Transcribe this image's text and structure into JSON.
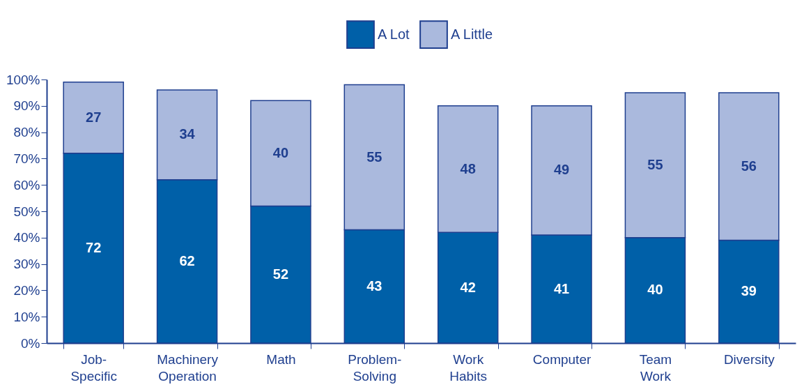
{
  "chart_data": {
    "type": "bar",
    "stacked": true,
    "data_labels": true,
    "legend": "top",
    "grid": false,
    "categories": [
      "Job-Specific",
      "Machinery Operation",
      "Math",
      "Problem-Solving",
      "Work Habits",
      "Computer",
      "Team Work",
      "Diversity"
    ],
    "series": [
      {
        "name": "A Lot",
        "color": "#0060a8",
        "values": [
          72,
          62,
          52,
          43,
          42,
          41,
          40,
          39
        ]
      },
      {
        "name": "A Little",
        "color": "#aab9dd",
        "values": [
          27,
          34,
          40,
          55,
          48,
          49,
          55,
          56
        ]
      }
    ],
    "ylim": [
      0,
      100
    ],
    "yticks": [
      {
        "value": 0,
        "label": "0%"
      },
      {
        "value": 10,
        "label": "10%"
      },
      {
        "value": 20,
        "label": "20%"
      },
      {
        "value": 30,
        "label": "30%"
      },
      {
        "value": 40,
        "label": "40%"
      },
      {
        "value": 50,
        "label": "50%"
      },
      {
        "value": 60,
        "label": "60%"
      },
      {
        "value": 70,
        "label": "70%"
      },
      {
        "value": 80,
        "label": "80%"
      },
      {
        "value": 90,
        "label": "90%"
      },
      {
        "value": 100,
        "label": "100%"
      }
    ]
  }
}
